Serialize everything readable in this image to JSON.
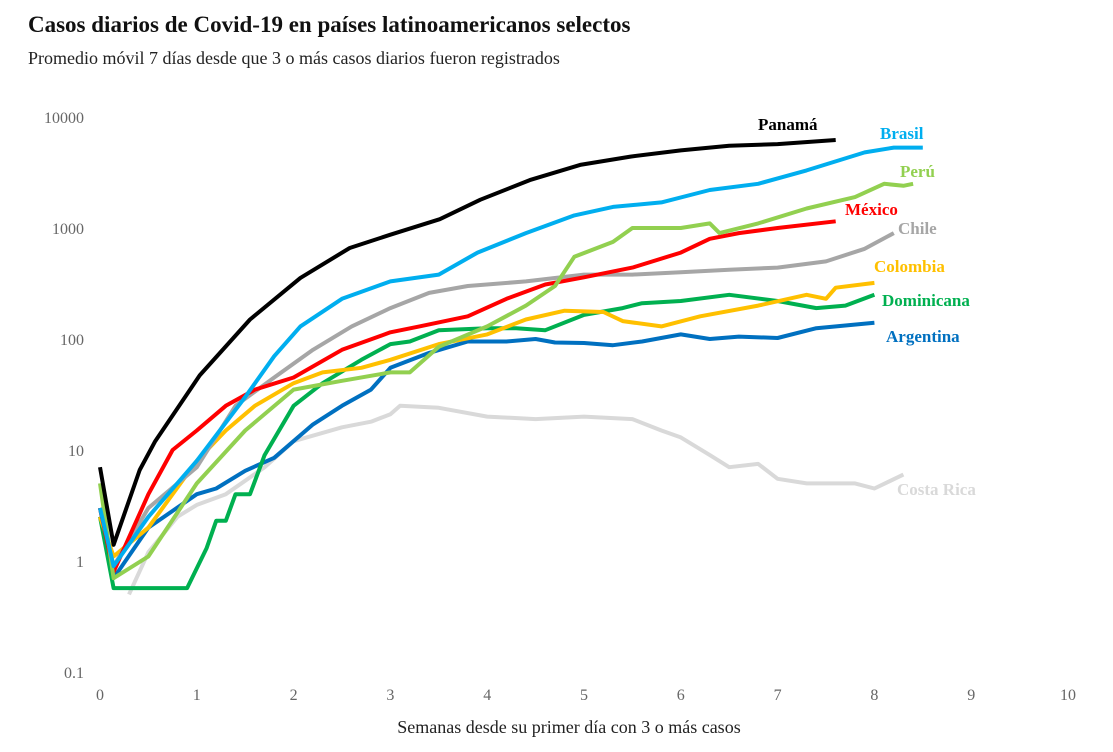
{
  "chart_data": {
    "type": "line",
    "title": "Casos diarios de Covid-19 en países latinoamericanos selectos",
    "subtitle": "Promedio móvil 7 días desde que 3 o más casos diarios fueron registrados",
    "xlabel": "Semanas desde su primer día con 3 o más casos",
    "ylabel": "",
    "yscale": "log",
    "xlim": [
      0,
      10
    ],
    "ylim": [
      0.1,
      10000
    ],
    "xticks": [
      "0",
      "1",
      "2",
      "3",
      "4",
      "5",
      "6",
      "7",
      "8",
      "9",
      "10"
    ],
    "yticks": [
      "0.1",
      "1",
      "10",
      "100",
      "1000",
      "10000"
    ],
    "grid": false,
    "legend": "direct labels at line ends",
    "series": [
      {
        "name": "Panamá",
        "color": "#000000",
        "points": [
          [
            0,
            7
          ],
          [
            0.14,
            1.4
          ],
          [
            0.41,
            6.6
          ],
          [
            0.57,
            12
          ],
          [
            1.03,
            47
          ],
          [
            1.55,
            150
          ],
          [
            2.07,
            355
          ],
          [
            2.58,
            660
          ],
          [
            3.0,
            870
          ],
          [
            3.51,
            1200
          ],
          [
            3.93,
            1800
          ],
          [
            4.44,
            2700
          ],
          [
            4.96,
            3700
          ],
          [
            5.48,
            4400
          ],
          [
            6.0,
            5000
          ],
          [
            6.5,
            5500
          ],
          [
            7.0,
            5700
          ],
          [
            7.6,
            6200
          ]
        ]
      },
      {
        "name": "Brasil",
        "color": "#00AEEF",
        "points": [
          [
            0,
            3
          ],
          [
            0.14,
            0.9
          ],
          [
            0.5,
            2.5
          ],
          [
            1,
            8
          ],
          [
            1.5,
            30
          ],
          [
            1.8,
            70
          ],
          [
            2.07,
            130
          ],
          [
            2.5,
            230
          ],
          [
            3,
            330
          ],
          [
            3.5,
            380
          ],
          [
            3.9,
            600
          ],
          [
            4.4,
            900
          ],
          [
            4.9,
            1300
          ],
          [
            5.3,
            1550
          ],
          [
            5.8,
            1700
          ],
          [
            6.3,
            2200
          ],
          [
            6.8,
            2500
          ],
          [
            7.3,
            3300
          ],
          [
            7.9,
            4800
          ],
          [
            8.2,
            5300
          ],
          [
            8.5,
            5300
          ]
        ]
      },
      {
        "name": "Perú",
        "color": "#92D050",
        "points": [
          [
            0,
            5
          ],
          [
            0.14,
            0.7
          ],
          [
            0.5,
            1.1
          ],
          [
            1,
            5
          ],
          [
            1.5,
            15
          ],
          [
            2,
            35
          ],
          [
            2.5,
            42
          ],
          [
            3,
            50
          ],
          [
            3.2,
            50
          ],
          [
            3.5,
            85
          ],
          [
            4,
            130
          ],
          [
            4.4,
            200
          ],
          [
            4.7,
            300
          ],
          [
            4.9,
            550
          ],
          [
            5.3,
            750
          ],
          [
            5.5,
            1000
          ],
          [
            6,
            1000
          ],
          [
            6.3,
            1100
          ],
          [
            6.4,
            900
          ],
          [
            6.8,
            1100
          ],
          [
            7.3,
            1500
          ],
          [
            7.8,
            1900
          ],
          [
            8.1,
            2500
          ],
          [
            8.3,
            2400
          ],
          [
            8.4,
            2500
          ]
        ]
      },
      {
        "name": "México",
        "color": "#FF0000",
        "points": [
          [
            0,
            3
          ],
          [
            0.14,
            0.8
          ],
          [
            0.5,
            4
          ],
          [
            0.75,
            10
          ],
          [
            1,
            15
          ],
          [
            1.3,
            25
          ],
          [
            1.6,
            35
          ],
          [
            2,
            45
          ],
          [
            2.5,
            80
          ],
          [
            3,
            115
          ],
          [
            3.3,
            130
          ],
          [
            3.8,
            160
          ],
          [
            4.2,
            230
          ],
          [
            4.6,
            310
          ],
          [
            5,
            360
          ],
          [
            5.5,
            440
          ],
          [
            6,
            600
          ],
          [
            6.3,
            800
          ],
          [
            6.6,
            900
          ],
          [
            7,
            1000
          ],
          [
            7.6,
            1150
          ]
        ]
      },
      {
        "name": "Chile",
        "color": "#A6A6A6",
        "points": [
          [
            0,
            3
          ],
          [
            0.14,
            0.9
          ],
          [
            0.5,
            3
          ],
          [
            1,
            7
          ],
          [
            1.4,
            25
          ],
          [
            1.8,
            45
          ],
          [
            2.2,
            80
          ],
          [
            2.6,
            130
          ],
          [
            3,
            190
          ],
          [
            3.4,
            260
          ],
          [
            3.8,
            300
          ],
          [
            4.4,
            330
          ],
          [
            5,
            380
          ],
          [
            5.5,
            380
          ],
          [
            6,
            400
          ],
          [
            6.5,
            420
          ],
          [
            7,
            440
          ],
          [
            7.5,
            500
          ],
          [
            7.9,
            650
          ],
          [
            8.2,
            900
          ]
        ]
      },
      {
        "name": "Colombia",
        "color": "#FFC000",
        "points": [
          [
            0,
            2.5
          ],
          [
            0.14,
            1.1
          ],
          [
            0.5,
            2
          ],
          [
            1,
            8
          ],
          [
            1.3,
            15
          ],
          [
            1.6,
            25
          ],
          [
            2,
            40
          ],
          [
            2.3,
            50
          ],
          [
            2.7,
            55
          ],
          [
            3,
            65
          ],
          [
            3.5,
            90
          ],
          [
            4,
            110
          ],
          [
            4.4,
            150
          ],
          [
            4.8,
            180
          ],
          [
            5.2,
            175
          ],
          [
            5.4,
            145
          ],
          [
            5.8,
            130
          ],
          [
            6.2,
            160
          ],
          [
            6.8,
            200
          ],
          [
            7.3,
            250
          ],
          [
            7.5,
            230
          ],
          [
            7.6,
            290
          ],
          [
            8.0,
            320
          ]
        ]
      },
      {
        "name": "Dominicana",
        "color": "#00B050",
        "points": [
          [
            0,
            2.5
          ],
          [
            0.14,
            0.57
          ],
          [
            0.9,
            0.57
          ],
          [
            1.1,
            1.3
          ],
          [
            1.2,
            2.3
          ],
          [
            1.3,
            2.3
          ],
          [
            1.4,
            4
          ],
          [
            1.55,
            4
          ],
          [
            1.7,
            9
          ],
          [
            2,
            25
          ],
          [
            2.3,
            40
          ],
          [
            2.7,
            65
          ],
          [
            3,
            90
          ],
          [
            3.2,
            95
          ],
          [
            3.5,
            120
          ],
          [
            4,
            125
          ],
          [
            4.3,
            125
          ],
          [
            4.6,
            120
          ],
          [
            5,
            165
          ],
          [
            5.4,
            190
          ],
          [
            5.6,
            210
          ],
          [
            6,
            220
          ],
          [
            6.5,
            250
          ],
          [
            7,
            220
          ],
          [
            7.4,
            190
          ],
          [
            7.7,
            200
          ],
          [
            8,
            250
          ]
        ]
      },
      {
        "name": "Argentina",
        "color": "#0070C0",
        "points": [
          [
            0,
            3
          ],
          [
            0.14,
            0.7
          ],
          [
            0.5,
            2
          ],
          [
            1,
            4
          ],
          [
            1.2,
            4.5
          ],
          [
            1.5,
            6.5
          ],
          [
            1.8,
            8.5
          ],
          [
            2.2,
            17
          ],
          [
            2.5,
            25
          ],
          [
            2.8,
            35
          ],
          [
            3,
            55
          ],
          [
            3.4,
            75
          ],
          [
            3.8,
            95
          ],
          [
            4.2,
            95
          ],
          [
            4.5,
            100
          ],
          [
            4.7,
            93
          ],
          [
            5,
            92
          ],
          [
            5.3,
            88
          ],
          [
            5.6,
            95
          ],
          [
            6,
            110
          ],
          [
            6.3,
            100
          ],
          [
            6.6,
            105
          ],
          [
            7,
            102
          ],
          [
            7.4,
            125
          ],
          [
            8,
            140
          ]
        ]
      },
      {
        "name": "Costa Rica",
        "color": "#D9D9D9",
        "points": [
          [
            0.3,
            0.5
          ],
          [
            0.5,
            1.2
          ],
          [
            0.8,
            2.5
          ],
          [
            1,
            3.2
          ],
          [
            1.3,
            4
          ],
          [
            1.7,
            7
          ],
          [
            2,
            12
          ],
          [
            2.5,
            16
          ],
          [
            2.8,
            18
          ],
          [
            3,
            21
          ],
          [
            3.1,
            25
          ],
          [
            3.5,
            24
          ],
          [
            4,
            20
          ],
          [
            4.5,
            19
          ],
          [
            5,
            20
          ],
          [
            5.5,
            19
          ],
          [
            5.8,
            15
          ],
          [
            6,
            13
          ],
          [
            6.3,
            9
          ],
          [
            6.5,
            7
          ],
          [
            6.8,
            7.5
          ],
          [
            7,
            5.5
          ],
          [
            7.3,
            5
          ],
          [
            7.8,
            5
          ],
          [
            8,
            4.5
          ],
          [
            8.3,
            6
          ]
        ]
      }
    ]
  }
}
